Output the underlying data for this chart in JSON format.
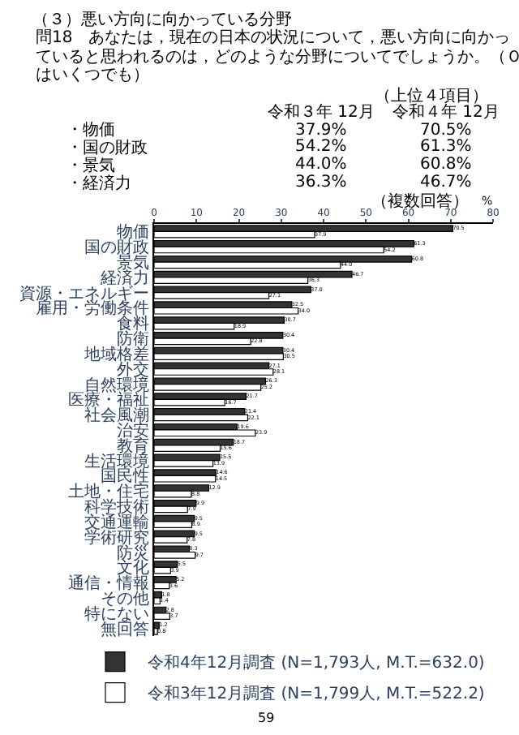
{
  "chart_data": {
    "type": "bar",
    "orientation": "horizontal",
    "title": "（３）悪い方向に向かっている分野",
    "subtitle": "問18　あなたは，現在の日本の状況について，悪い方向に向かっていると思われるのは，どのような分野についてでしょうか。（Ｏはいくつでも）",
    "xlabel": "%",
    "categories": [
      "物価",
      "国の財政",
      "景気",
      "経済力",
      "資源・エネルギー",
      "雇用・労働条件",
      "食料",
      "防衛",
      "地域格差",
      "外交",
      "自然環境",
      "医療・福祉",
      "社会風潮",
      "治安",
      "教育",
      "生活環境",
      "国民性",
      "土地・住宅",
      "科学技術",
      "交通運輸",
      "学術研究",
      "防災",
      "文化",
      "通信・情報",
      "その他",
      "特にない",
      "無回答"
    ],
    "series": [
      {
        "name": "令和4年12月調査 (N=1,793人, M.T.=632.0)",
        "color": "#333333",
        "values": [
          70.5,
          61.3,
          60.8,
          46.7,
          37.0,
          32.5,
          30.7,
          30.4,
          30.4,
          27.1,
          26.3,
          21.7,
          21.4,
          19.6,
          18.7,
          15.5,
          14.6,
          12.9,
          9.9,
          9.5,
          9.5,
          8.3,
          5.5,
          5.2,
          1.8,
          2.8,
          1.2
        ],
        "value_labels": [
          "70.5",
          "61.3",
          "60.8",
          "46.7",
          "37.0",
          "32.5",
          "30.7",
          "30.4",
          "30.4",
          "27.1",
          "26.3",
          "21.7",
          "21.4",
          "19.6",
          "18.7",
          "15.5",
          "14.6",
          "12.9",
          "9.9",
          "9.5",
          "9.5",
          "8.3",
          "5.5",
          "5.2",
          "1.8",
          "2.8",
          "1.2"
        ]
      },
      {
        "name": "令和3年12月調査 (N=1,799人, M.T.=522.2)",
        "color": "#ffffff",
        "values": [
          37.9,
          54.2,
          44.0,
          36.3,
          27.1,
          34.0,
          18.9,
          22.8,
          30.5,
          28.1,
          25.2,
          16.7,
          22.1,
          23.9,
          15.6,
          13.9,
          14.5,
          8.8,
          7.9,
          8.9,
          7.8,
          9.7,
          3.9,
          3.6,
          1.4,
          3.7,
          0.8
        ],
        "value_labels": [
          "37.9",
          "54.2",
          "44.0",
          "36.3",
          "27.1",
          "34.0",
          "18.9",
          "22.8",
          "30.5",
          "28.1",
          "25.2",
          "16.7",
          "22.1",
          "23.9",
          "15.6",
          "13.9",
          "14.5",
          "8.8",
          "7.9",
          "8.9",
          "7.8",
          "9.7",
          "3.9",
          "3.6",
          "1.4",
          "3.7",
          "0.8"
        ]
      }
    ],
    "xlim": [
      0,
      80
    ],
    "xticks": [
      0,
      10,
      20,
      30,
      40,
      50,
      60,
      70,
      80
    ],
    "legend": "bottom",
    "annotations": [
      "（上位４項目）",
      "令和３年 12月",
      "令和４年 12月",
      "・物価",
      "37.9%",
      "70.5%",
      "・国の財政",
      "54.2%",
      "61.3%",
      "・景気",
      "44.0%",
      "60.8%",
      "・経済力",
      "36.3%",
      "46.7%",
      "（複数回答）",
      "59"
    ]
  }
}
